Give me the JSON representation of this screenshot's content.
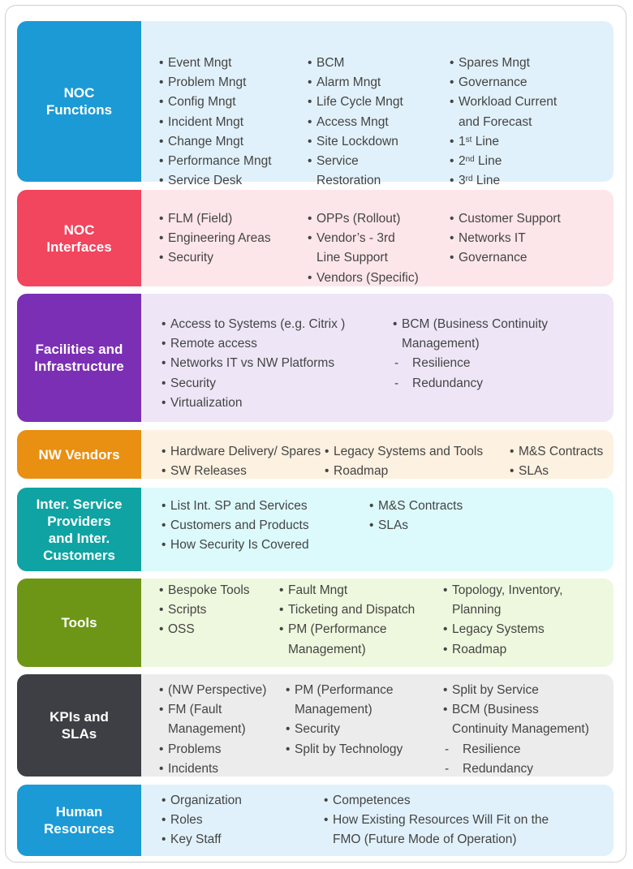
{
  "rows": [
    {
      "label": "NOC\nFunctions",
      "color": "#1b9ad6",
      "bg": "#e1f1fb",
      "cols": [
        [
          "Event Mngt",
          "Problem Mngt",
          "Config Mngt",
          "Incident Mngt",
          "Change Mngt",
          "Performance Mngt",
          "Service Desk"
        ],
        [
          "BCM",
          "Alarm Mngt",
          "Life Cycle Mngt",
          "Access Mngt",
          "Site Lockdown",
          "Service\n Restoration"
        ],
        [
          "Spares Mngt",
          "Governance",
          "Workload Current\n and Forecast",
          "1st Line",
          "2nd Line",
          "3rd Line"
        ]
      ]
    },
    {
      "label": "NOC\nInterfaces",
      "color": "#f2455e",
      "bg": "#fde6ea",
      "cols": [
        [
          "FLM (Field)",
          "Engineering Areas",
          "Security"
        ],
        [
          "OPPs (Rollout)",
          "Vendor’s - 3rd\n Line Support",
          "Vendors (Specific)"
        ],
        [
          "Customer Support",
          "Networks IT",
          "Governance"
        ]
      ]
    },
    {
      "label": "Facilities and\nInfrastructure",
      "color": "#7b2fb5",
      "bg": "#eee6f7",
      "cols": [
        [
          "Access to Systems (e.g. Citrix )",
          "Remote access",
          "Networks IT vs NW Platforms",
          "Security",
          "Virtualization"
        ],
        [
          "BCM (Business Continuity\n Management)",
          "-Resilience",
          "-Redundancy"
        ]
      ]
    },
    {
      "label": "NW Vendors",
      "color": "#e98f12",
      "bg": "#fdf1e1",
      "cols": [
        [
          "Hardware Delivery/ Spares",
          "SW Releases"
        ],
        [
          "Legacy Systems and Tools",
          "Roadmap"
        ],
        [
          "M&S Contracts",
          "SLAs"
        ]
      ]
    },
    {
      "label": "Inter. Service\nProviders\nand Inter.\nCustomers",
      "color": "#0fa3a3",
      "bg": "#dcfafc",
      "cols": [
        [
          "List Int. SP and Services",
          "Customers and Products",
          "How Security Is Covered"
        ],
        [
          "M&S Contracts",
          "SLAs"
        ]
      ]
    },
    {
      "label": "Tools",
      "color": "#6e9616",
      "bg": "#eef8de",
      "cols": [
        [
          "Bespoke Tools",
          "Scripts",
          "OSS"
        ],
        [
          "Fault Mngt",
          "Ticketing and Dispatch",
          "PM (Performance\n Management)"
        ],
        [
          "Topology, Inventory,\n Planning",
          "Legacy Systems",
          "Roadmap"
        ]
      ]
    },
    {
      "label": "KPIs and\nSLAs",
      "color": "#3d3f44",
      "bg": "#ececed",
      "cols": [
        [
          "(NW Perspective)",
          "FM (Fault\n Management)",
          "Problems",
          "Incidents"
        ],
        [
          "PM (Performance\n Management)",
          "Security",
          "Split by Technology"
        ],
        [
          "Split by Service",
          "BCM (Business\n Continuity Management)",
          "-Resilience",
          "-Redundancy"
        ]
      ]
    },
    {
      "label": "Human\nResources",
      "color": "#1b9ad6",
      "bg": "#e1f1fb",
      "cols": [
        [
          "Organization",
          "Roles",
          "Key Staff"
        ],
        [
          "Competences",
          "How Existing Resources Will Fit on the\n FMO (Future Mode of Operation)"
        ]
      ]
    }
  ]
}
